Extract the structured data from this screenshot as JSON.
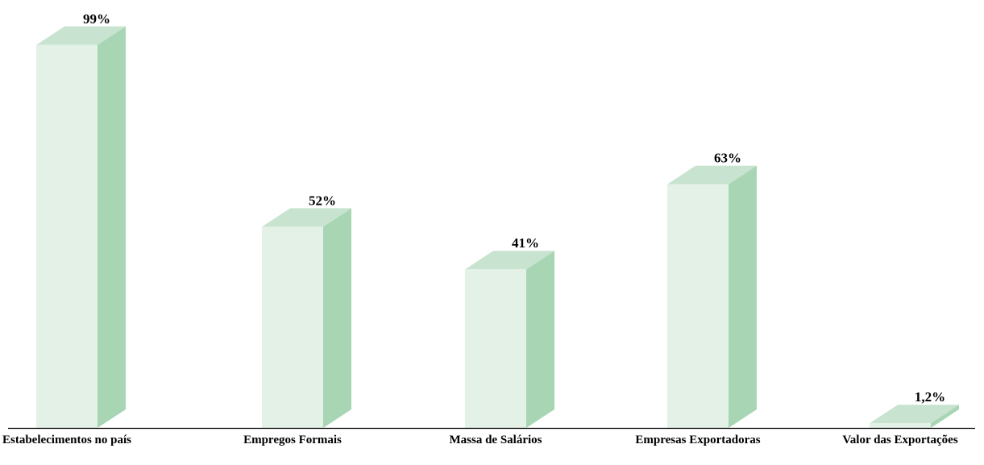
{
  "chart_data": {
    "type": "bar3d",
    "categories": [
      "Estabelecimentos no país",
      "Empregos Formais",
      "Massa de Salários",
      "Empresas Exportadoras",
      "Valor das Exportações"
    ],
    "values": [
      99,
      52,
      41,
      63,
      1.2
    ],
    "value_labels": [
      "99%",
      "52%",
      "41%",
      "63%",
      "1,2%"
    ],
    "colors": {
      "front": "#e3f1e6",
      "top": "#c8e4d0",
      "side": "#a8d5b4"
    },
    "ylim": [
      0,
      100
    ]
  }
}
